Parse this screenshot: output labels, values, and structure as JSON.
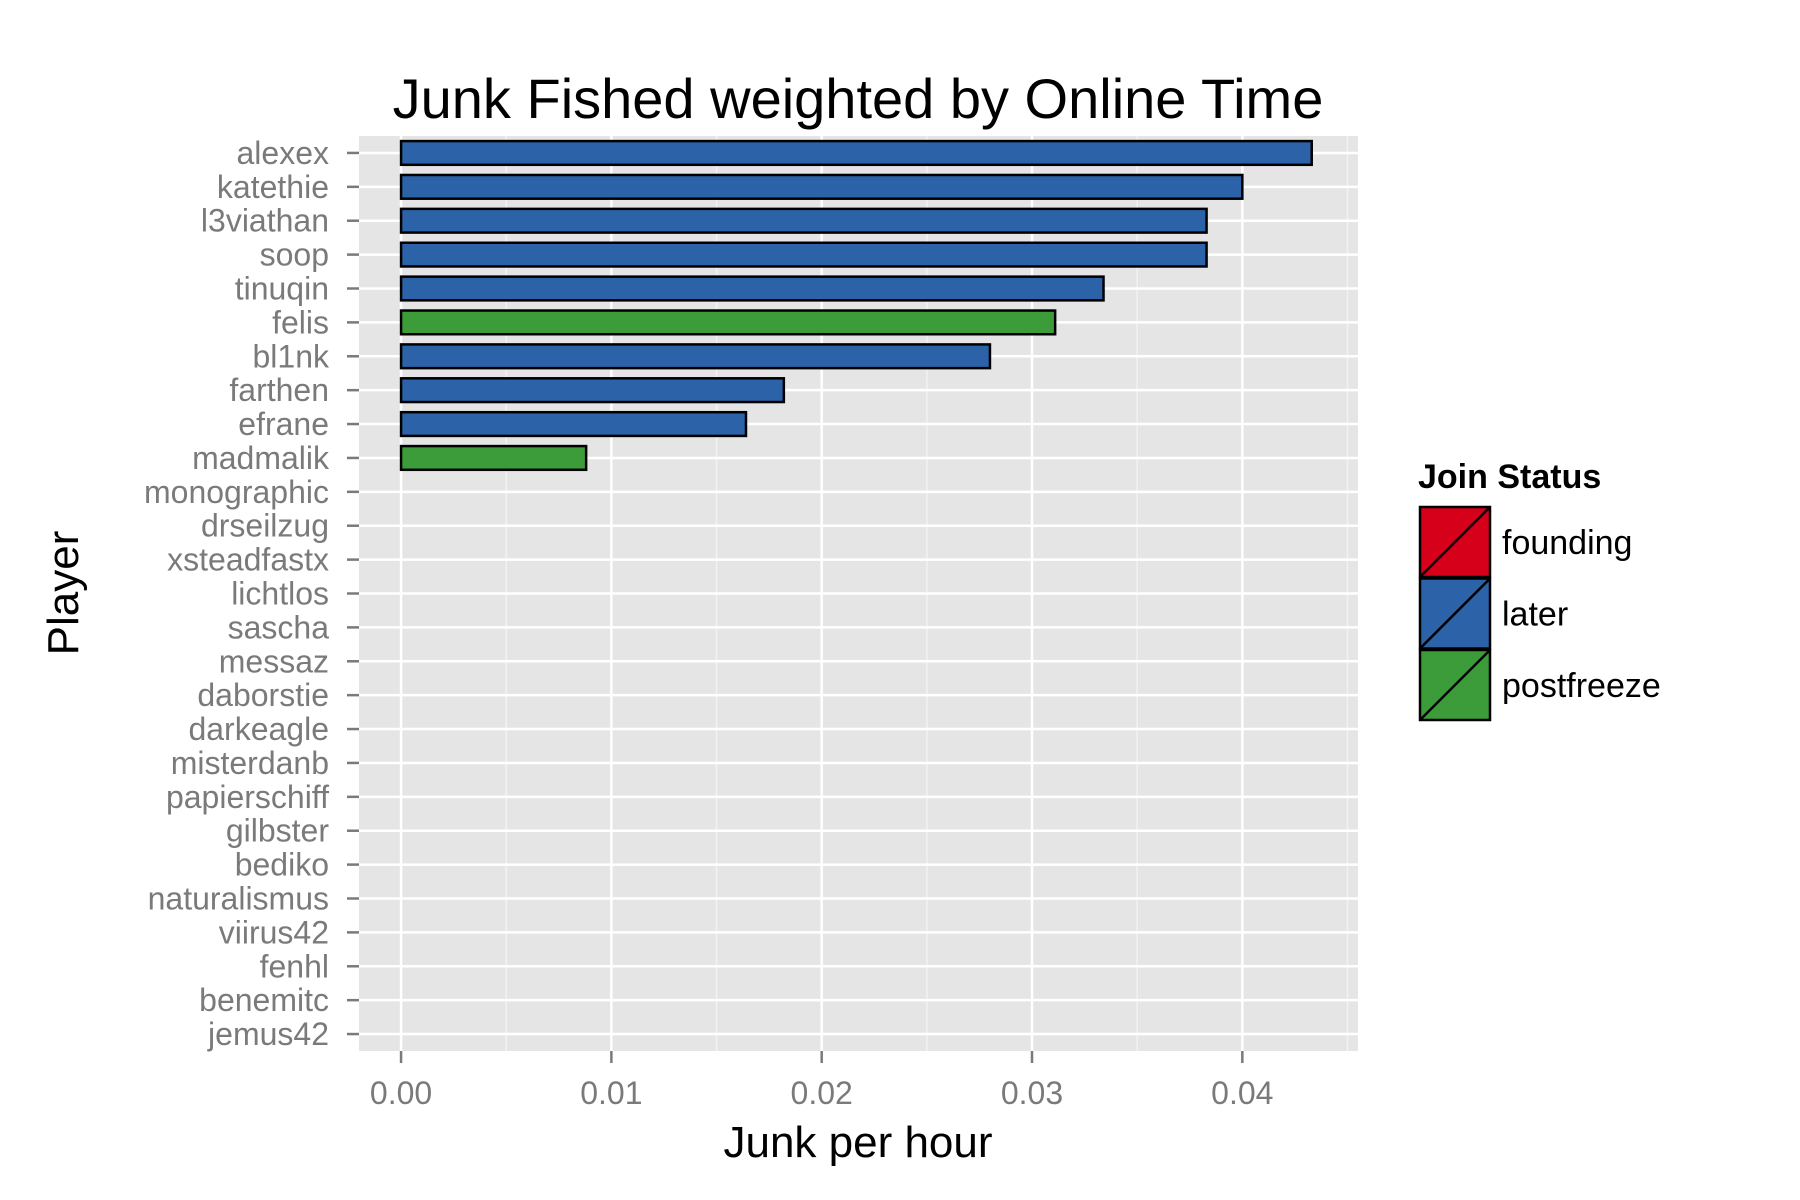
{
  "chart_data": {
    "type": "bar",
    "orientation": "horizontal",
    "title": "Junk Fished weighted by Online Time",
    "xlabel": "Junk per hour",
    "ylabel": "Player",
    "xlim": [
      -0.002,
      0.0455
    ],
    "xticks": [
      0.0,
      0.01,
      0.02,
      0.03,
      0.04
    ],
    "xtick_labels": [
      "0.00",
      "0.01",
      "0.02",
      "0.03",
      "0.04"
    ],
    "grid": true,
    "legend": {
      "title": "Join Status",
      "placement": "right",
      "entries": [
        {
          "name": "founding",
          "color": "#d7001a"
        },
        {
          "name": "later",
          "color": "#2c63a8"
        },
        {
          "name": "postfreeze",
          "color": "#3d9c3a"
        }
      ]
    },
    "categories": [
      "alexex",
      "katethie",
      "l3viathan",
      "soop",
      "tinuqin",
      "felis",
      "bl1nk",
      "farthen",
      "efrane",
      "madmalik",
      "monographic",
      "drseilzug",
      "xsteadfastx",
      "lichtlos",
      "sascha",
      "messaz",
      "daborstie",
      "darkeagle",
      "misterdanb",
      "papierschiff",
      "gilbster",
      "bediko",
      "naturalismus",
      "viirus42",
      "fenhl",
      "benemitc",
      "jemus42"
    ],
    "values": [
      0.0433,
      0.04,
      0.0383,
      0.0383,
      0.0334,
      0.0311,
      0.028,
      0.0182,
      0.0164,
      0.0088,
      0,
      0,
      0,
      0,
      0,
      0,
      0,
      0,
      0,
      0,
      0,
      0,
      0,
      0,
      0,
      0,
      0
    ],
    "groups": [
      "later",
      "later",
      "later",
      "later",
      "later",
      "postfreeze",
      "later",
      "later",
      "later",
      "postfreeze",
      "later",
      "later",
      "later",
      "later",
      "later",
      "later",
      "later",
      "later",
      "later",
      "later",
      "later",
      "later",
      "later",
      "later",
      "later",
      "later",
      "later"
    ]
  },
  "colors": {
    "panel_background": "#e5e5e5",
    "grid_major": "#ffffff",
    "grid_minor": "#f2f2f2",
    "bar_outline": "#000000"
  }
}
